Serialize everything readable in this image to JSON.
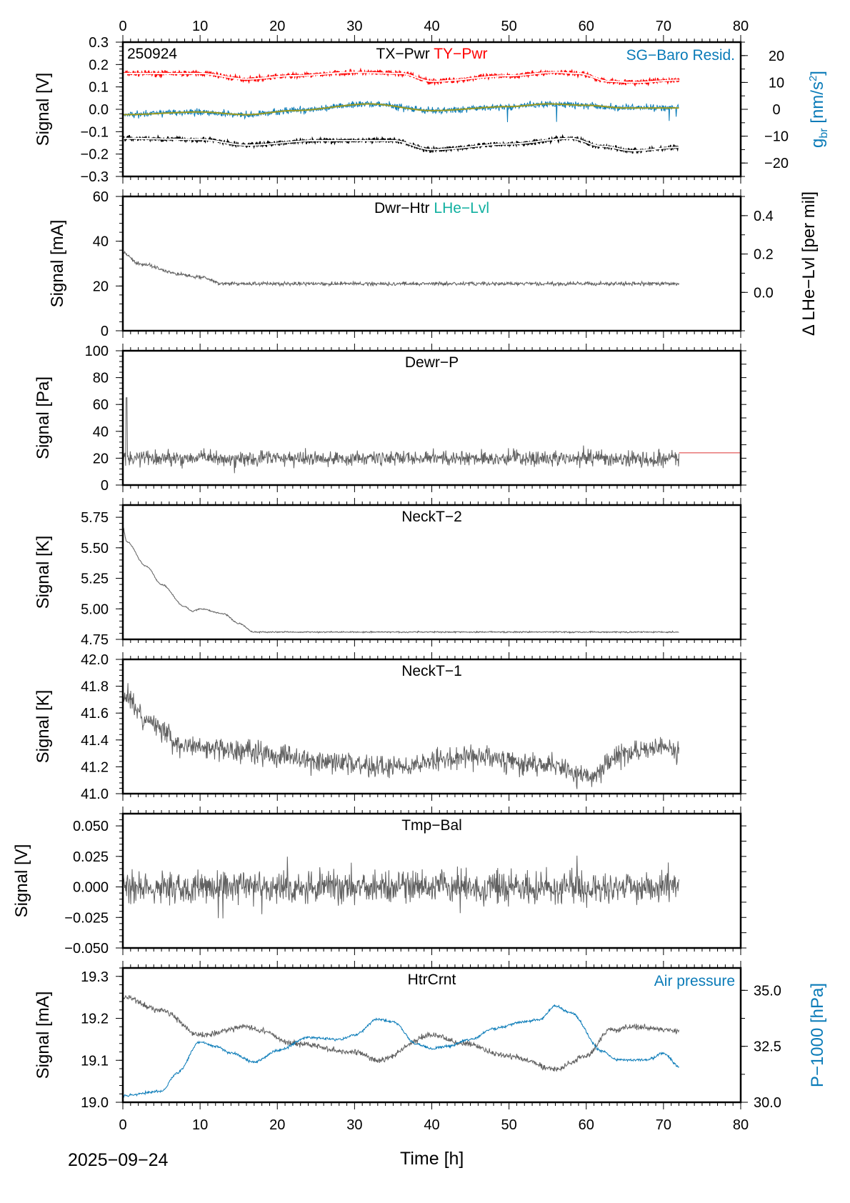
{
  "date_label": "2025−09−24",
  "station_code": "250924",
  "xlabel": "Time [h]",
  "chart_data": [
    {
      "type": "line",
      "title": [
        "TX−Pwr",
        "TY−Pwr"
      ],
      "title_right": "SG−Baro Resid.",
      "ylabel": "Signal [V]",
      "ylabel_right": "g_br [nm/s2]",
      "xlim": [
        0,
        80
      ],
      "xticks": [
        0,
        10,
        20,
        30,
        40,
        50,
        60,
        70,
        80
      ],
      "ylim": [
        -0.3,
        0.3
      ],
      "yticks": [
        "-0.3",
        "-0.2",
        "-0.1",
        "0.0",
        "0.1",
        "0.2",
        "0.3"
      ],
      "ylim_right": [
        -25,
        25
      ],
      "yticks_right": [
        "-20",
        "-10",
        "0",
        "10",
        "20"
      ],
      "series": [
        {
          "name": "TY−Pwr",
          "color": "#ff0000",
          "axis": "left",
          "smooth_color": "#ffffff",
          "x": [
            0,
            10,
            16,
            22,
            30,
            36,
            40,
            50,
            56,
            59,
            63,
            66,
            72
          ],
          "y": [
            0.16,
            0.16,
            0.135,
            0.15,
            0.165,
            0.16,
            0.125,
            0.15,
            0.165,
            0.16,
            0.125,
            0.12,
            0.13
          ]
        },
        {
          "name": "TX−Pwr",
          "color": "#000000",
          "axis": "left",
          "smooth_color": "#ffffff",
          "x": [
            0,
            10,
            16,
            25,
            35,
            40,
            50,
            58,
            62,
            66,
            72
          ],
          "y": [
            -0.13,
            -0.135,
            -0.16,
            -0.14,
            -0.14,
            -0.18,
            -0.155,
            -0.13,
            -0.165,
            -0.185,
            -0.17
          ]
        },
        {
          "name": "SG−Baro Resid.",
          "color": "#0a7bb8",
          "axis": "right",
          "smooth_color": "#9a9a20",
          "x": [
            0,
            10,
            16,
            22,
            32,
            40,
            50,
            55,
            60,
            65,
            72
          ],
          "y": [
            -2,
            -1,
            -2,
            -0.5,
            2,
            -0.5,
            1,
            2,
            1.5,
            0.5,
            0.5
          ]
        }
      ]
    },
    {
      "type": "line",
      "title": [
        "Dwr−Htr",
        "LHe−Lvl"
      ],
      "ylabel": "Signal [mA]",
      "ylabel_right": "Δ LHe−Lvl [per mil]",
      "xlim": [
        0,
        80
      ],
      "ylim": [
        0,
        60
      ],
      "yticks": [
        "0",
        "20",
        "40",
        "60"
      ],
      "ylim_right": [
        -0.2,
        0.5
      ],
      "yticks_right": [
        "0.0",
        "0.2",
        "0.4"
      ],
      "series": [
        {
          "name": "Dwr−Htr",
          "color": "#606060",
          "axis": "left",
          "x": [
            0,
            2,
            8,
            10,
            13,
            72
          ],
          "y": [
            35,
            30,
            25,
            24,
            21,
            21
          ]
        },
        {
          "name": "LHe−Lvl",
          "color": "#cc00cc",
          "axis": "left",
          "x": [
            0,
            72
          ],
          "y": [
            0,
            0
          ]
        }
      ]
    },
    {
      "type": "line",
      "title": [
        "Dewr−P"
      ],
      "ylabel": "Signal [Pa]",
      "xlim": [
        0,
        80
      ],
      "ylim": [
        0,
        100
      ],
      "yticks": [
        "0",
        "20",
        "40",
        "60",
        "80",
        "100"
      ],
      "series": [
        {
          "name": "Dewr−P",
          "color": "#606060",
          "axis": "left",
          "x": [
            0,
            72
          ],
          "y": [
            20,
            20
          ]
        },
        {
          "color": "#dd3333",
          "axis": "left",
          "x": [
            72,
            80
          ],
          "y": [
            24,
            24
          ]
        }
      ]
    },
    {
      "type": "line",
      "title": [
        "NeckT−2"
      ],
      "ylabel": "Signal [K]",
      "xlim": [
        0,
        80
      ],
      "ylim": [
        4.75,
        5.85
      ],
      "yticks": [
        "4.75",
        "5.00",
        "5.25",
        "5.50",
        "5.75"
      ],
      "series": [
        {
          "name": "NeckT−2",
          "color": "#606060",
          "axis": "left",
          "x": [
            0,
            0.5,
            3,
            5,
            8,
            9,
            10,
            13,
            15,
            17,
            72
          ],
          "y": [
            5.67,
            5.55,
            5.35,
            5.2,
            5.02,
            4.98,
            5.0,
            4.96,
            4.88,
            4.81,
            4.81
          ]
        }
      ]
    },
    {
      "type": "line",
      "title": [
        "NeckT−1"
      ],
      "ylabel": "Signal [K]",
      "xlim": [
        0,
        80
      ],
      "ylim": [
        41.0,
        42.0
      ],
      "yticks": [
        "41.0",
        "41.2",
        "41.4",
        "41.6",
        "41.8",
        "42.0"
      ],
      "series": [
        {
          "name": "NeckT−1",
          "color": "#606060",
          "axis": "left",
          "x": [
            0,
            3,
            8,
            15,
            25,
            35,
            45,
            55,
            60,
            65,
            70,
            72
          ],
          "y": [
            41.75,
            41.55,
            41.35,
            41.32,
            41.25,
            41.2,
            41.28,
            41.22,
            41.12,
            41.3,
            41.35,
            41.3
          ]
        }
      ]
    },
    {
      "type": "line",
      "title": [
        "Tmp−Bal"
      ],
      "ylabel": "Signal [V]",
      "xlim": [
        0,
        80
      ],
      "ylim": [
        -0.05,
        0.06
      ],
      "yticks": [
        "-0.050",
        "-0.025",
        "0.000",
        "0.025",
        "0.050"
      ],
      "series": [
        {
          "name": "Tmp−Bal",
          "color": "#606060",
          "axis": "left",
          "x": [
            0,
            72
          ],
          "y": [
            0,
            0
          ]
        }
      ]
    },
    {
      "type": "line",
      "title": [
        "HtrCrnt"
      ],
      "title_right": "Air pressure",
      "ylabel": "Signal [mA]",
      "ylabel_right": "P−1000 [hPa]",
      "xlim": [
        0,
        80
      ],
      "xticks": [
        0,
        10,
        20,
        30,
        40,
        50,
        60,
        70,
        80
      ],
      "ylim": [
        19.0,
        19.32
      ],
      "yticks": [
        "19.0",
        "19.1",
        "19.2",
        "19.3"
      ],
      "ylim_right": [
        30.0,
        36.0
      ],
      "yticks_right": [
        "30.0",
        "32.5",
        "35.0"
      ],
      "series": [
        {
          "name": "HtrCrnt",
          "color": "#606060",
          "axis": "left",
          "x": [
            0,
            5,
            10,
            16,
            18,
            22,
            30,
            33,
            40,
            44,
            50,
            56,
            60,
            63,
            66,
            72
          ],
          "y": [
            19.25,
            19.22,
            19.16,
            19.18,
            19.17,
            19.14,
            19.12,
            19.1,
            19.16,
            19.14,
            19.11,
            19.08,
            19.11,
            19.17,
            19.18,
            19.17
          ]
        },
        {
          "name": "Air pressure",
          "color": "#0a7bb8",
          "axis": "right",
          "x": [
            0,
            5,
            7,
            10,
            12,
            14,
            17,
            20,
            24,
            28,
            30,
            33,
            35,
            38,
            40,
            42,
            45,
            48,
            52,
            54,
            56,
            58,
            62,
            64,
            68,
            70,
            72
          ],
          "y": [
            30.3,
            30.5,
            31.3,
            32.7,
            32.5,
            32.2,
            31.8,
            32.3,
            32.9,
            32.8,
            33.0,
            33.7,
            33.6,
            32.6,
            32.4,
            32.5,
            32.8,
            33.3,
            33.6,
            33.7,
            34.3,
            34.0,
            32.3,
            31.9,
            31.9,
            32.2,
            31.6
          ]
        }
      ]
    }
  ]
}
